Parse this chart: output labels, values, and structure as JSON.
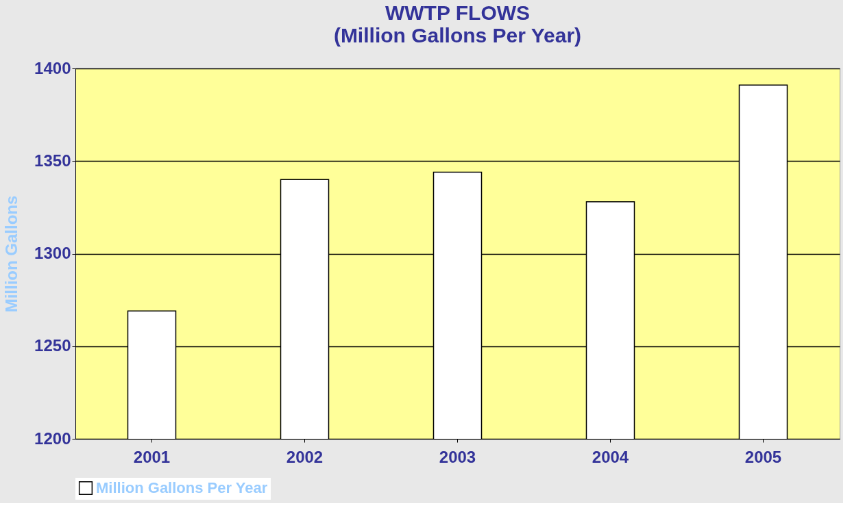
{
  "chart_data": {
    "type": "bar",
    "title": "WWTP FLOWS",
    "subtitle": "(Million Gallons Per Year)",
    "ylabel": "Million Gallons",
    "categories": [
      "2001",
      "2002",
      "2003",
      "2004",
      "2005"
    ],
    "series": [
      {
        "name": "Million Gallons Per Year",
        "color": "#ffffff",
        "values": [
          1269,
          1340,
          1344,
          1328,
          1391
        ]
      }
    ],
    "ylim": [
      1200,
      1400
    ],
    "yticks": [
      1200,
      1250,
      1300,
      1350,
      1400
    ],
    "grid": "y",
    "legend": "bottom"
  }
}
